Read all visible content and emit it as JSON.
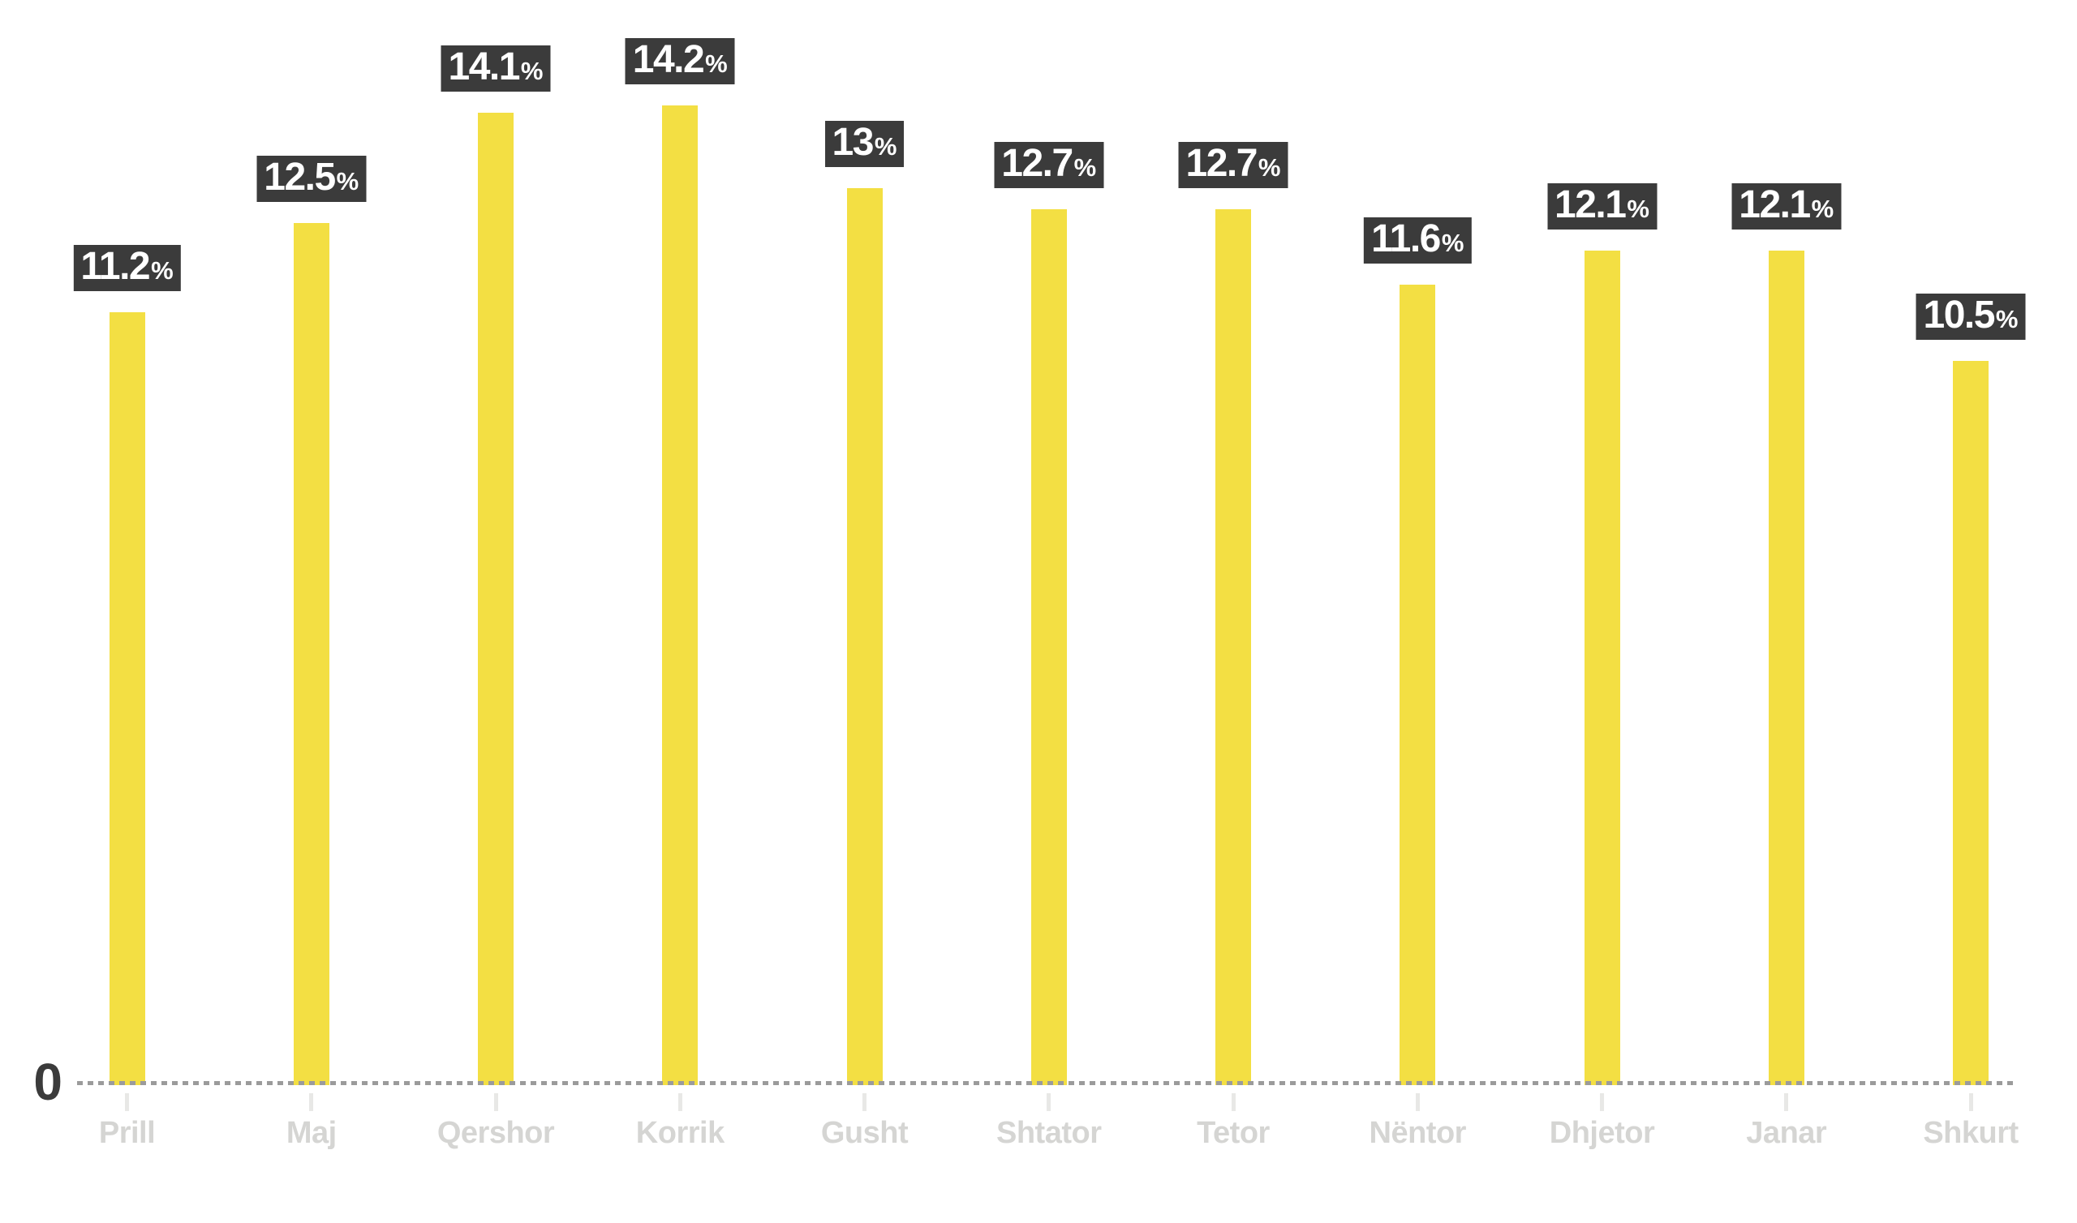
{
  "chart_data": {
    "type": "bar",
    "title": "",
    "categories": [
      "Prill",
      "Maj",
      "Qershor",
      "Korrik",
      "Gusht",
      "Shtator",
      "Tetor",
      "Nëntor",
      "Dhjetor",
      "Janar",
      "Shkurt"
    ],
    "values": [
      11.2,
      12.5,
      14.1,
      14.2,
      13,
      12.7,
      12.7,
      11.6,
      12.1,
      12.1,
      10.5
    ],
    "unit_suffix": "%",
    "zero_label": "0",
    "xlabel": "",
    "ylabel": "",
    "ylim": [
      0,
      14.2
    ],
    "grid": "dotted-zero-baseline-only",
    "legend": "none",
    "bar_color": "#F3DF43",
    "label_bg_color": "#3B3B3B",
    "label_text_color": "#FFFFFF",
    "axis_text_color": "#D5D5D3",
    "tick_color": "#E8E8E6",
    "baseline_dot_color": "#9B9B9B",
    "zero_label_color": "#3B3B3B"
  }
}
